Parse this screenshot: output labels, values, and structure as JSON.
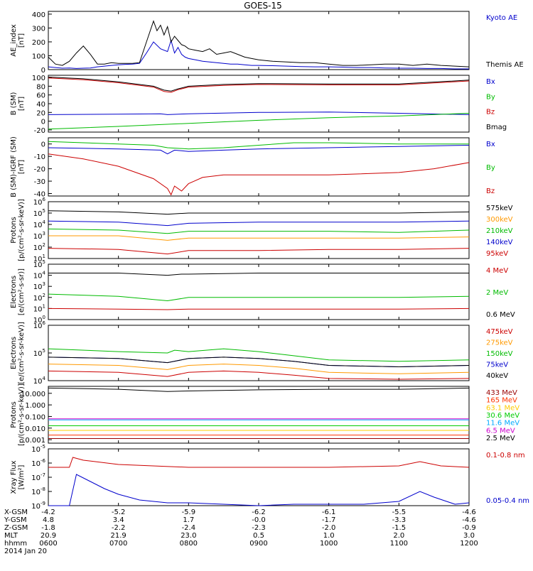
{
  "title": "GOES-15",
  "chart_data": [
    {
      "type": "line",
      "ylabel": "AE_index\n[nT]",
      "yticks": [
        "400",
        "300",
        "200",
        "100",
        "0"
      ],
      "ylim": [
        0,
        420
      ],
      "series": [
        {
          "name": "Kyoto AE",
          "color": "#0000cc",
          "x": [
            0,
            0.1,
            0.2,
            0.3,
            0.4,
            0.5,
            0.6,
            0.7,
            0.8,
            0.9,
            1.0,
            1.1,
            1.2,
            1.3,
            1.4,
            1.5,
            1.6,
            1.7,
            1.75,
            1.8,
            1.85,
            1.9,
            1.95,
            2.0,
            2.1,
            2.2,
            2.3,
            2.4,
            2.5,
            2.6,
            2.7,
            2.8,
            2.9,
            3.0,
            3.2,
            3.4,
            3.6,
            3.8,
            4.0,
            4.2,
            4.4,
            4.6,
            4.8,
            5.0,
            5.2,
            5.4,
            5.6,
            5.8,
            6.0
          ],
          "y": [
            20,
            15,
            10,
            12,
            8,
            10,
            12,
            20,
            25,
            30,
            35,
            38,
            40,
            45,
            120,
            200,
            150,
            130,
            210,
            120,
            160,
            110,
            90,
            80,
            70,
            60,
            55,
            50,
            45,
            40,
            40,
            35,
            30,
            30,
            28,
            25,
            22,
            20,
            20,
            18,
            15,
            15,
            12,
            10,
            10,
            8,
            8,
            5,
            5
          ]
        },
        {
          "name": "Themis AE",
          "color": "#000000",
          "x": [
            0,
            0.1,
            0.2,
            0.3,
            0.4,
            0.5,
            0.6,
            0.7,
            0.8,
            0.9,
            1.0,
            1.1,
            1.2,
            1.3,
            1.4,
            1.5,
            1.55,
            1.6,
            1.65,
            1.7,
            1.75,
            1.8,
            1.85,
            1.9,
            1.95,
            2.0,
            2.1,
            2.2,
            2.3,
            2.4,
            2.5,
            2.6,
            2.7,
            2.8,
            2.9,
            3.0,
            3.2,
            3.4,
            3.6,
            3.8,
            4.0,
            4.2,
            4.4,
            4.6,
            4.8,
            5.0,
            5.2,
            5.4,
            5.6,
            5.8,
            6.0
          ],
          "y": [
            90,
            40,
            30,
            60,
            120,
            170,
            110,
            40,
            40,
            50,
            45,
            45,
            45,
            50,
            200,
            350,
            280,
            320,
            250,
            310,
            200,
            240,
            210,
            180,
            170,
            150,
            140,
            130,
            150,
            110,
            120,
            130,
            110,
            90,
            80,
            70,
            60,
            55,
            50,
            50,
            40,
            30,
            30,
            35,
            40,
            40,
            30,
            40,
            30,
            25,
            20
          ]
        }
      ]
    },
    {
      "type": "line",
      "ylabel": "B (SM)\n[nT]",
      "yticks": [
        "100",
        "80",
        "60",
        "40",
        "20",
        "0",
        "-20"
      ],
      "ylim": [
        -25,
        105
      ],
      "series": [
        {
          "name": "Bx",
          "color": "#0000cc",
          "x": [
            0,
            1.0,
            1.6,
            1.7,
            2.0,
            3.0,
            4.0,
            5.0,
            6.0
          ],
          "y": [
            15,
            16,
            17,
            15,
            17,
            20,
            21,
            18,
            15
          ]
        },
        {
          "name": "By",
          "color": "#00bb00",
          "x": [
            0,
            1.0,
            2.0,
            3.0,
            4.0,
            5.0,
            6.0
          ],
          "y": [
            -18,
            -12,
            -5,
            2,
            8,
            12,
            18
          ]
        },
        {
          "name": "Bz",
          "color": "#cc0000",
          "x": [
            0,
            0.5,
            1.0,
            1.5,
            1.65,
            1.75,
            1.85,
            2.0,
            2.5,
            3.0,
            4.0,
            5.0,
            6.0
          ],
          "y": [
            99,
            95,
            88,
            78,
            68,
            66,
            72,
            78,
            82,
            84,
            83,
            83,
            92
          ]
        },
        {
          "name": "Bmag",
          "color": "#000000",
          "x": [
            0,
            0.5,
            1.0,
            1.5,
            1.65,
            1.75,
            1.85,
            2.0,
            2.5,
            3.0,
            4.0,
            5.0,
            6.0
          ],
          "y": [
            101,
            97,
            90,
            80,
            71,
            69,
            74,
            80,
            84,
            86,
            85,
            85,
            94
          ]
        }
      ]
    },
    {
      "type": "line",
      "ylabel": "B (SM)-IGRF (SM)\n[nT]",
      "yticks": [
        "0",
        "-10",
        "-20",
        "-30",
        "-40"
      ],
      "ylim": [
        -42,
        5
      ],
      "series": [
        {
          "name": "Bx",
          "color": "#0000cc",
          "x": [
            0,
            1.0,
            1.6,
            1.7,
            1.8,
            2.0,
            2.5,
            3.0,
            4.0,
            5.0,
            6.0
          ],
          "y": [
            -3,
            -4,
            -5,
            -8,
            -5,
            -6,
            -5,
            -4,
            -3,
            -2,
            -1
          ]
        },
        {
          "name": "By",
          "color": "#00bb00",
          "x": [
            0,
            0.5,
            1.0,
            1.5,
            1.7,
            2.0,
            2.5,
            3.0,
            3.5,
            4.0,
            5.0,
            6.0
          ],
          "y": [
            2,
            1,
            0,
            -1,
            -3,
            -4,
            -3,
            -1,
            1,
            1,
            0,
            0
          ]
        },
        {
          "name": "Bz",
          "color": "#cc0000",
          "x": [
            0,
            0.5,
            1.0,
            1.5,
            1.7,
            1.75,
            1.8,
            1.9,
            2.0,
            2.2,
            2.5,
            3.0,
            4.0,
            5.0,
            5.5,
            6.0
          ],
          "y": [
            -8,
            -12,
            -18,
            -28,
            -36,
            -41,
            -34,
            -38,
            -32,
            -27,
            -25,
            -25,
            -25,
            -23,
            -20,
            -15
          ]
        }
      ]
    },
    {
      "type": "line",
      "log": true,
      "ylabel": "Protons\n[p/(cm²-s-sr-keV)]",
      "ylim_exp": [
        1,
        6
      ],
      "series": [
        {
          "name": "575keV",
          "color": "#000000",
          "x": [
            0,
            1.0,
            1.7,
            2.0,
            3.0,
            4.0,
            5.0,
            6.0
          ],
          "y": [
            5.2,
            5.1,
            4.9,
            5.0,
            5.0,
            5.0,
            5.0,
            5.1
          ]
        },
        {
          "name": "300keV",
          "color": "#ff9900",
          "x": [
            0,
            1.0,
            1.7,
            2.0,
            3.0,
            4.0,
            5.0,
            6.0
          ],
          "y": [
            3.0,
            3.0,
            2.6,
            2.8,
            2.8,
            2.8,
            2.8,
            2.9
          ]
        },
        {
          "name": "210keV",
          "color": "#00bb00",
          "x": [
            0,
            1.0,
            1.7,
            2.0,
            3.0,
            4.0,
            5.0,
            6.0
          ],
          "y": [
            3.6,
            3.5,
            3.2,
            3.4,
            3.4,
            3.4,
            3.3,
            3.5
          ]
        },
        {
          "name": "140keV",
          "color": "#0000cc",
          "x": [
            0,
            1.0,
            1.7,
            2.0,
            3.0,
            4.0,
            5.0,
            6.0
          ],
          "y": [
            4.3,
            4.2,
            3.9,
            4.1,
            4.2,
            4.2,
            4.2,
            4.3
          ]
        },
        {
          "name": "95keV",
          "color": "#cc0000",
          "x": [
            0,
            1.0,
            1.7,
            2.0,
            3.0,
            4.0,
            5.0,
            6.0
          ],
          "y": [
            1.9,
            1.8,
            1.4,
            1.7,
            1.7,
            1.8,
            1.8,
            1.9
          ]
        }
      ]
    },
    {
      "type": "line",
      "log": true,
      "ylabel": "Electrons\n[e/(cm²-s-sr)]",
      "ylim_exp": [
        0,
        5
      ],
      "series": [
        {
          "name": "4 MeV",
          "color": "#cc0000",
          "x": [
            0,
            1.0,
            1.7,
            2.0,
            3.0,
            4.0,
            5.0,
            6.0
          ],
          "y": [
            1.0,
            0.95,
            0.9,
            0.95,
            0.95,
            0.95,
            0.95,
            1.0
          ]
        },
        {
          "name": "2 MeV",
          "color": "#00bb00",
          "x": [
            0,
            1.0,
            1.7,
            2.0,
            3.0,
            4.0,
            5.0,
            6.0
          ],
          "y": [
            2.3,
            2.1,
            1.7,
            2.0,
            2.0,
            2.0,
            2.0,
            2.1
          ]
        },
        {
          "name": "0.6 MeV",
          "color": "#000000",
          "x": [
            0,
            1.0,
            1.7,
            1.9,
            2.0,
            3.0,
            4.0,
            5.0,
            6.0
          ],
          "y": [
            4.2,
            4.2,
            4.0,
            4.1,
            4.1,
            4.2,
            4.2,
            4.2,
            4.2
          ]
        }
      ]
    },
    {
      "type": "line",
      "log": true,
      "ylabel": "Electrons\n[e/(cm²-s-sr-keV)]",
      "ylim_exp": [
        4,
        6
      ],
      "series": [
        {
          "name": "475keV",
          "color": "#cc0000",
          "x": [
            0,
            1.0,
            1.7,
            2.0,
            2.5,
            3.0,
            3.5,
            4.0,
            5.0,
            6.0
          ],
          "y": [
            4.35,
            4.3,
            4.15,
            4.3,
            4.35,
            4.3,
            4.2,
            4.08,
            4.05,
            4.08
          ]
        },
        {
          "name": "275keV",
          "color": "#ff9900",
          "x": [
            0,
            1.0,
            1.7,
            2.0,
            2.5,
            3.0,
            3.5,
            4.0,
            5.0,
            6.0
          ],
          "y": [
            4.6,
            4.55,
            4.4,
            4.55,
            4.6,
            4.55,
            4.45,
            4.3,
            4.25,
            4.3
          ]
        },
        {
          "name": "150keV",
          "color": "#00bb00",
          "x": [
            0,
            1.0,
            1.7,
            1.8,
            2.0,
            2.5,
            3.0,
            3.5,
            4.0,
            5.0,
            6.0
          ],
          "y": [
            5.15,
            5.05,
            5.0,
            5.1,
            5.05,
            5.15,
            5.05,
            4.9,
            4.75,
            4.7,
            4.75
          ]
        },
        {
          "name": "75keV",
          "color": "#0000cc",
          "x": [
            0,
            1.0,
            1.7,
            2.0,
            2.5,
            3.0,
            3.5,
            4.0,
            5.0,
            6.0
          ],
          "y": [
            4.85,
            4.8,
            4.65,
            4.8,
            4.85,
            4.8,
            4.7,
            4.55,
            4.5,
            4.55
          ]
        },
        {
          "name": "40keV",
          "color": "#000000",
          "x": [
            0,
            1.0,
            1.7,
            2.0,
            2.5,
            3.0,
            3.5,
            4.0,
            5.0,
            6.0
          ],
          "y": [
            4.85,
            4.8,
            4.65,
            4.8,
            4.85,
            4.8,
            4.7,
            4.55,
            4.5,
            4.55
          ]
        }
      ]
    },
    {
      "type": "line",
      "log": true,
      "ylabel": "Protons\n[p/(cm²-s-sr-keV)]",
      "yticks": [
        "10.000",
        "1.000",
        "0.100",
        "0.010",
        "0.001"
      ],
      "ylim_exp": [
        -3.3,
        1.6
      ],
      "series": [
        {
          "name": "433 MeV",
          "color": "#990000",
          "x": [
            0,
            6
          ],
          "y": [
            -2.9,
            -2.9
          ]
        },
        {
          "name": "165 MeV",
          "color": "#ff3300",
          "x": [
            0,
            6
          ],
          "y": [
            -2.6,
            -2.6
          ]
        },
        {
          "name": "63.1 MeV",
          "color": "#ffcc00",
          "x": [
            0,
            6
          ],
          "y": [
            -2.2,
            -2.2
          ]
        },
        {
          "name": "30.6 MeV",
          "color": "#00cc00",
          "x": [
            0,
            6
          ],
          "y": [
            -1.8,
            -1.8
          ]
        },
        {
          "name": "11.6 MeV",
          "color": "#00aaff",
          "x": [
            0,
            6
          ],
          "y": [
            -1.3,
            -1.3
          ]
        },
        {
          "name": "6.5 MeV",
          "color": "#cc00cc",
          "x": [
            0,
            6
          ],
          "y": [
            -1.2,
            -1.2
          ]
        },
        {
          "name": "2.5 MeV",
          "color": "#000000",
          "x": [
            0,
            1.0,
            1.7,
            2.0,
            3.0,
            4.0,
            5.0,
            6.0
          ],
          "y": [
            1.45,
            1.35,
            1.15,
            1.2,
            1.3,
            1.35,
            1.35,
            1.45
          ]
        }
      ]
    },
    {
      "type": "line",
      "log": true,
      "ylabel": "Xray Flux\n[W/m²]",
      "ylim_exp": [
        -9,
        -5
      ],
      "series": [
        {
          "name": "0.1-0.8 nm",
          "color": "#cc0000",
          "x": [
            0,
            0.3,
            0.35,
            0.5,
            1.0,
            2.0,
            3.0,
            4.0,
            5.0,
            5.3,
            5.6,
            6.0
          ],
          "y": [
            -6.3,
            -6.3,
            -5.6,
            -5.8,
            -6.1,
            -6.3,
            -6.3,
            -6.3,
            -6.2,
            -5.9,
            -6.2,
            -6.3
          ]
        },
        {
          "name": "0.05-0.4 nm",
          "color": "#0000cc",
          "x": [
            0,
            0.3,
            0.4,
            0.6,
            0.8,
            1.0,
            1.3,
            1.7,
            2.0,
            2.5,
            3.0,
            3.5,
            4.0,
            4.5,
            5.0,
            5.3,
            5.5,
            5.8,
            6.0
          ],
          "y": [
            -9,
            -9,
            -6.8,
            -7.3,
            -7.8,
            -8.2,
            -8.6,
            -8.8,
            -8.8,
            -8.9,
            -9,
            -8.9,
            -8.9,
            -8.9,
            -8.7,
            -8.0,
            -8.4,
            -8.9,
            -8.8
          ]
        }
      ]
    }
  ],
  "ephemeris": {
    "row_labels": [
      "X-GSM",
      "Y-GSM",
      "Z-GSM",
      "MLT",
      "hhmm",
      "2014 Jan 20"
    ],
    "columns": [
      [
        "-4.2",
        "4.8",
        "-1.8",
        "20.9",
        "0600"
      ],
      [
        "-5.2",
        "3.4",
        "-2.2",
        "21.9",
        "0700"
      ],
      [
        "-5.9",
        "1.7",
        "-2.4",
        "23.0",
        "0800"
      ],
      [
        "-6.2",
        "-0.0",
        "-2.3",
        "0.5",
        "0900"
      ],
      [
        "-6.1",
        "-1.7",
        "-2.0",
        "1.0",
        "1000"
      ],
      [
        "-5.5",
        "-3.3",
        "-1.5",
        "2.0",
        "1100"
      ],
      [
        "-4.6",
        "-4.6",
        "-0.9",
        "3.0",
        "1200"
      ]
    ]
  }
}
